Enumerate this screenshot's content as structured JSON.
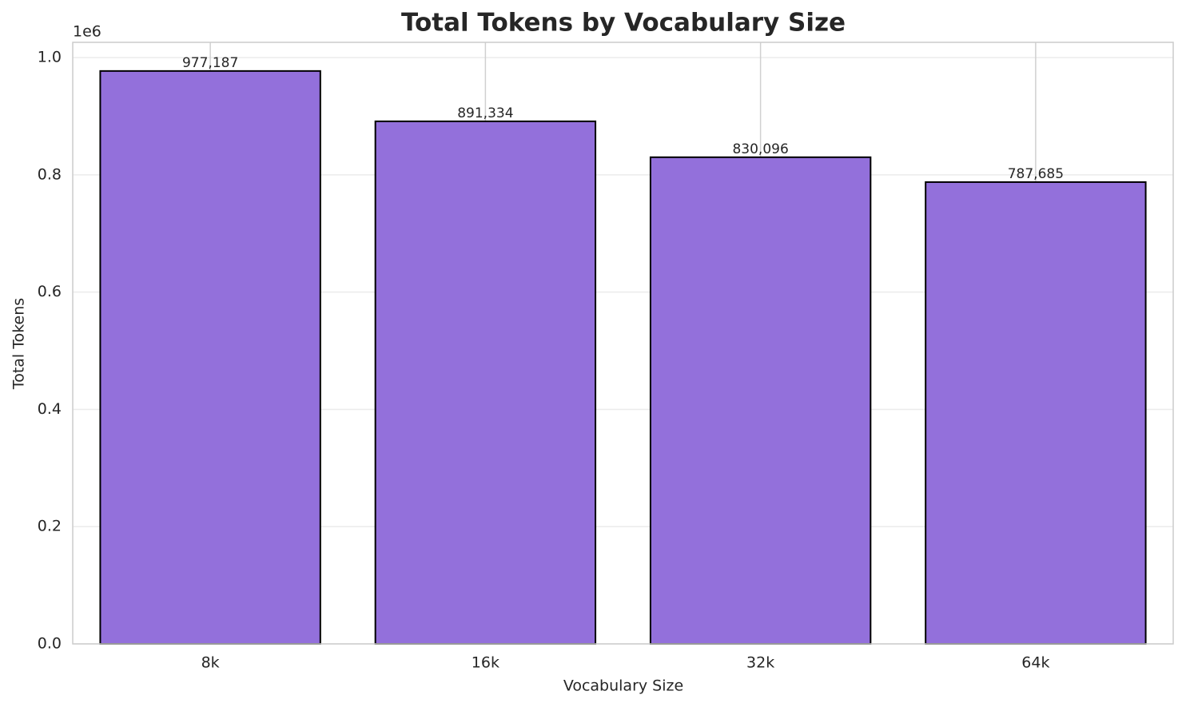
{
  "chart_data": {
    "type": "bar",
    "title": "Total Tokens by Vocabulary Size",
    "x_label": "Vocabulary Size",
    "y_label": "Total Tokens",
    "y_offset_label": "1e6",
    "categories": [
      "8k",
      "16k",
      "32k",
      "64k"
    ],
    "values": [
      977187,
      891334,
      830096,
      787685
    ],
    "value_labels": [
      "977,187",
      "891,334",
      "830,096",
      "787,685"
    ],
    "color": "#9370db",
    "edge_color": "#000000",
    "ylim": [
      0,
      1026046
    ],
    "yticks": [
      {
        "value": 0,
        "label": "0.0"
      },
      {
        "value": 200000,
        "label": "0.2"
      },
      {
        "value": 400000,
        "label": "0.4"
      },
      {
        "value": 600000,
        "label": "0.6"
      },
      {
        "value": 800000,
        "label": "0.8"
      },
      {
        "value": 1000000,
        "label": "1.0"
      }
    ],
    "grid": true
  }
}
